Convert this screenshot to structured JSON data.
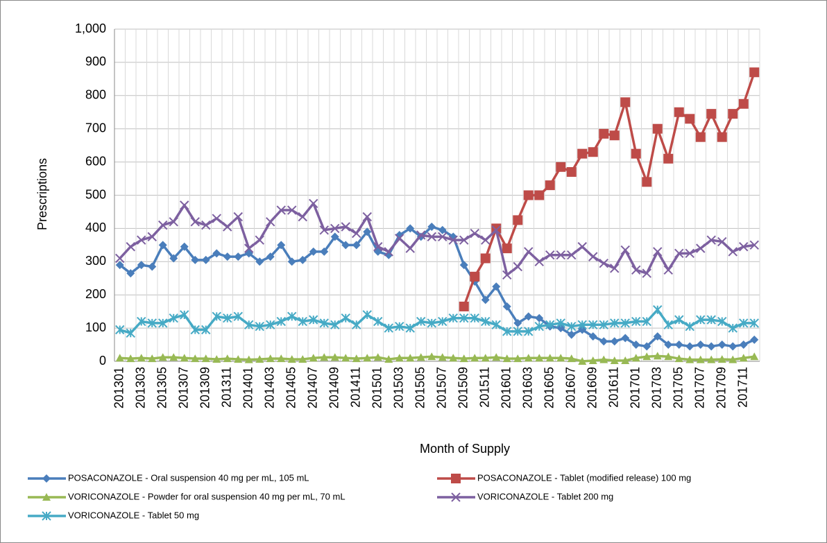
{
  "chart_data": {
    "type": "line",
    "x_label": "Month of Supply",
    "y_label": "Prescriptions",
    "categories": [
      "201301",
      null,
      "201303",
      null,
      "201305",
      null,
      "201307",
      null,
      "201309",
      null,
      "201311",
      null,
      "201401",
      null,
      "201403",
      null,
      "201405",
      null,
      "201407",
      null,
      "201409",
      null,
      "201411",
      null,
      "201501",
      null,
      "201503",
      null,
      "201505",
      null,
      "201507",
      null,
      "201509",
      null,
      "201511",
      null,
      "201601",
      null,
      "201603",
      null,
      "201605",
      null,
      "201607",
      null,
      "201609",
      null,
      "201611",
      null,
      "201701",
      null,
      "201703",
      null,
      "201705",
      null,
      "201707",
      null,
      "201709",
      null,
      "201711",
      null
    ],
    "ylim": [
      0,
      1000
    ],
    "yticks": [
      0,
      100,
      200,
      300,
      400,
      500,
      600,
      700,
      800,
      900,
      {
        "value": 1000,
        "label": "1,000"
      }
    ],
    "grid": true,
    "legend": "bottom",
    "series": [
      {
        "name": "POSACONAZOLE - Oral suspension 40 mg per mL, 105 mL",
        "color": "#4a7ebb",
        "marker": "diamond",
        "values": [
          290,
          265,
          290,
          285,
          350,
          310,
          345,
          305,
          305,
          325,
          315,
          315,
          325,
          300,
          315,
          350,
          300,
          305,
          330,
          330,
          375,
          350,
          350,
          390,
          330,
          320,
          380,
          400,
          375,
          405,
          395,
          375,
          290,
          240,
          185,
          225,
          165,
          115,
          135,
          130,
          105,
          100,
          80,
          95,
          75,
          60,
          60,
          70,
          50,
          45,
          75,
          50,
          50,
          45,
          50,
          45,
          50,
          45,
          50,
          65
        ]
      },
      {
        "name": "POSACONAZOLE - Tablet (modified release) 100 mg",
        "color": "#be4b48",
        "marker": "square",
        "values": [
          null,
          null,
          null,
          null,
          null,
          null,
          null,
          null,
          null,
          null,
          null,
          null,
          null,
          null,
          null,
          null,
          null,
          null,
          null,
          null,
          null,
          null,
          null,
          null,
          null,
          null,
          null,
          null,
          null,
          null,
          null,
          null,
          165,
          255,
          310,
          400,
          340,
          425,
          500,
          500,
          530,
          585,
          570,
          625,
          630,
          685,
          680,
          780,
          625,
          540,
          700,
          610,
          750,
          730,
          675,
          745,
          675,
          745,
          775,
          870
        ]
      },
      {
        "name": "VORICONAZOLE - Powder for oral suspension 40 mg per mL, 70 mL",
        "color": "#98b954",
        "marker": "triangle",
        "values": [
          10,
          8,
          10,
          8,
          12,
          12,
          10,
          8,
          8,
          6,
          8,
          6,
          5,
          6,
          8,
          8,
          6,
          6,
          10,
          12,
          12,
          10,
          8,
          10,
          12,
          6,
          10,
          10,
          12,
          14,
          12,
          10,
          8,
          10,
          10,
          12,
          8,
          8,
          10,
          10,
          10,
          10,
          8,
          0,
          2,
          5,
          2,
          2,
          10,
          14,
          16,
          14,
          8,
          5,
          5,
          5,
          6,
          5,
          10,
          14
        ]
      },
      {
        "name": "VORICONAZOLE - Tablet 200 mg",
        "color": "#7d60a0",
        "marker": "x",
        "values": [
          310,
          345,
          365,
          375,
          410,
          420,
          470,
          420,
          410,
          430,
          405,
          435,
          340,
          365,
          420,
          455,
          455,
          435,
          475,
          395,
          400,
          405,
          385,
          435,
          345,
          330,
          370,
          340,
          380,
          375,
          375,
          365,
          365,
          385,
          365,
          395,
          260,
          285,
          330,
          300,
          320,
          320,
          320,
          345,
          315,
          295,
          280,
          335,
          275,
          265,
          330,
          275,
          325,
          325,
          340,
          365,
          360,
          330,
          345,
          350
        ]
      },
      {
        "name": "VORICONAZOLE - Tablet 50 mg",
        "color": "#46aac5",
        "marker": "star",
        "values": [
          95,
          85,
          120,
          115,
          115,
          130,
          140,
          95,
          95,
          135,
          130,
          135,
          110,
          105,
          110,
          120,
          135,
          120,
          125,
          115,
          110,
          130,
          110,
          140,
          120,
          100,
          105,
          100,
          120,
          115,
          120,
          130,
          130,
          130,
          120,
          110,
          90,
          90,
          90,
          105,
          110,
          115,
          105,
          110,
          110,
          110,
          115,
          115,
          120,
          120,
          155,
          110,
          125,
          105,
          125,
          125,
          120,
          100,
          115,
          115
        ]
      }
    ]
  }
}
